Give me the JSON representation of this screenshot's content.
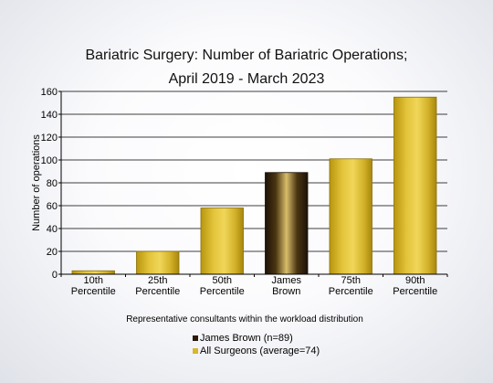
{
  "chart_data": {
    "type": "bar",
    "title": [
      "Bariatric Surgery: Number of Bariatric Operations;",
      "April 2019 - March 2023"
    ],
    "ylabel": "Number of operations",
    "xlabel": "Representative consultants within the workload distribution",
    "ylim": [
      0,
      160
    ],
    "yticks": [
      0,
      20,
      40,
      60,
      80,
      100,
      120,
      140,
      160
    ],
    "grid": true,
    "categories": [
      [
        "10th",
        "Percentile"
      ],
      [
        "25th",
        "Percentile"
      ],
      [
        "50th",
        "Percentile"
      ],
      [
        "James",
        "Brown"
      ],
      [
        "75th",
        "Percentile"
      ],
      [
        "90th",
        "Percentile"
      ]
    ],
    "values": [
      3,
      20,
      58,
      89,
      101,
      155
    ],
    "highlight_index": 3,
    "colors": {
      "all_surgeons": "#d9b72a",
      "all_surgeons_dark": "#a88a10",
      "consultant": "#3a2a10",
      "consultant_light": "#d8bd6a"
    },
    "legend": {
      "position": "bottom-center",
      "entries": [
        {
          "label": "James Brown (n=89)",
          "color": "#2a1a0c"
        },
        {
          "label": "All Surgeons (average=74)",
          "color": "#d9b72a"
        }
      ]
    }
  }
}
